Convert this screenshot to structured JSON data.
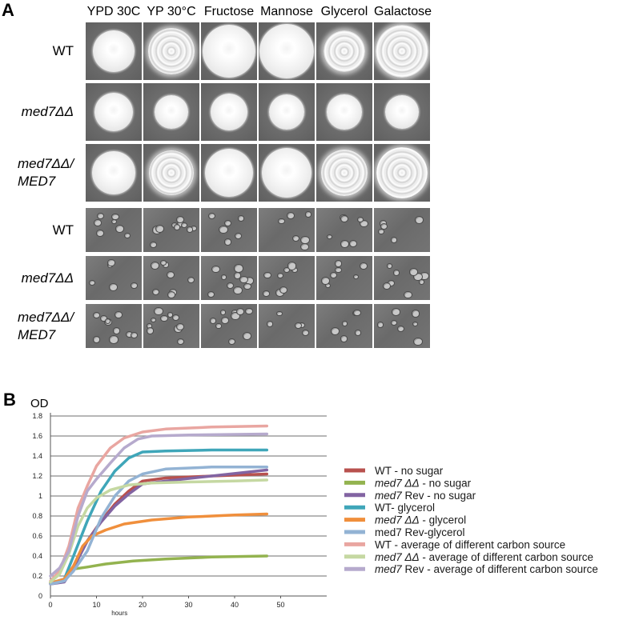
{
  "panel_a": {
    "label": "A",
    "columns": [
      "YPD 30C",
      "YP 30°C",
      "Fructose",
      "Mannose",
      "Glycerol",
      "Galactose"
    ],
    "colony_rows": [
      {
        "label_lines": [
          "WT"
        ],
        "italic": false
      },
      {
        "label_lines": [
          "med7ΔΔ"
        ],
        "italic": true
      },
      {
        "label_lines": [
          "med7ΔΔ/",
          "MED7"
        ],
        "italic": true
      }
    ],
    "micro_rows": [
      {
        "label_lines": [
          "WT"
        ],
        "italic": false
      },
      {
        "label_lines": [
          "med7ΔΔ"
        ],
        "italic": true
      },
      {
        "label_lines": [
          "med7ΔΔ/",
          "MED7"
        ],
        "italic": true
      }
    ]
  },
  "panel_b": {
    "label": "B",
    "ylabel": "OD",
    "xlabel": "hours"
  },
  "chart_data": {
    "type": "line",
    "title": "",
    "xlabel": "hours",
    "ylabel": "OD",
    "xlim": [
      0,
      60
    ],
    "ylim": [
      0,
      1.8
    ],
    "xticks": [
      0,
      10,
      20,
      30,
      40,
      50
    ],
    "yticks": [
      "0",
      "0.2",
      "0.4",
      "0.6",
      "0.8",
      "1",
      "1.2",
      "1.4",
      "1.6",
      "1.8"
    ],
    "grid": "horizontal",
    "legend_position": "right",
    "series": [
      {
        "name": "WT - no sugar",
        "name_parts": [
          {
            "t": "WT - no sugar",
            "i": false
          }
        ],
        "color": "#b8514e",
        "points": [
          [
            0,
            0.12
          ],
          [
            3,
            0.15
          ],
          [
            5,
            0.3
          ],
          [
            8,
            0.55
          ],
          [
            11,
            0.75
          ],
          [
            14,
            0.92
          ],
          [
            17,
            1.05
          ],
          [
            20,
            1.15
          ],
          [
            25,
            1.18
          ],
          [
            35,
            1.2
          ],
          [
            47,
            1.22
          ]
        ]
      },
      {
        "name": "med7 ΔΔ - no sugar",
        "name_parts": [
          {
            "t": "med7 ΔΔ",
            "i": true
          },
          {
            "t": " - no sugar",
            "i": false
          }
        ],
        "color": "#93b34f",
        "points": [
          [
            0,
            0.13
          ],
          [
            3,
            0.16
          ],
          [
            5,
            0.27
          ],
          [
            8,
            0.29
          ],
          [
            12,
            0.32
          ],
          [
            18,
            0.35
          ],
          [
            25,
            0.37
          ],
          [
            35,
            0.39
          ],
          [
            47,
            0.4
          ]
        ]
      },
      {
        "name": "med7 Rev - no sugar",
        "name_parts": [
          {
            "t": "med7",
            "i": true
          },
          {
            "t": " Rev - no sugar",
            "i": false
          }
        ],
        "color": "#8264a2",
        "points": [
          [
            0,
            0.12
          ],
          [
            3,
            0.14
          ],
          [
            5,
            0.28
          ],
          [
            8,
            0.55
          ],
          [
            11,
            0.74
          ],
          [
            14,
            0.9
          ],
          [
            17,
            1.02
          ],
          [
            20,
            1.12
          ],
          [
            25,
            1.15
          ],
          [
            35,
            1.2
          ],
          [
            47,
            1.26
          ]
        ]
      },
      {
        "name": "WT- glycerol",
        "name_parts": [
          {
            "t": "WT- glycerol",
            "i": false
          }
        ],
        "color": "#3fa6b9",
        "points": [
          [
            0,
            0.13
          ],
          [
            3,
            0.17
          ],
          [
            5,
            0.4
          ],
          [
            8,
            0.75
          ],
          [
            11,
            1.05
          ],
          [
            14,
            1.25
          ],
          [
            17,
            1.38
          ],
          [
            20,
            1.44
          ],
          [
            25,
            1.45
          ],
          [
            35,
            1.46
          ],
          [
            47,
            1.46
          ]
        ]
      },
      {
        "name": "med7 ΔΔ - glycerol",
        "name_parts": [
          {
            "t": "med7 ΔΔ",
            "i": true
          },
          {
            "t": " - glycerol",
            "i": false
          }
        ],
        "color": "#f08f3c",
        "points": [
          [
            0,
            0.13
          ],
          [
            3,
            0.17
          ],
          [
            5,
            0.3
          ],
          [
            7,
            0.5
          ],
          [
            9,
            0.6
          ],
          [
            12,
            0.66
          ],
          [
            16,
            0.72
          ],
          [
            22,
            0.76
          ],
          [
            30,
            0.79
          ],
          [
            40,
            0.81
          ],
          [
            47,
            0.82
          ]
        ]
      },
      {
        "name": "med7 Rev-glycerol",
        "name_parts": [
          {
            "t": "med7 Rev-glycerol",
            "i": false
          }
        ],
        "color": "#93b3d4",
        "points": [
          [
            0,
            0.12
          ],
          [
            3,
            0.15
          ],
          [
            5,
            0.25
          ],
          [
            8,
            0.45
          ],
          [
            11,
            0.78
          ],
          [
            14,
            1.0
          ],
          [
            17,
            1.15
          ],
          [
            20,
            1.22
          ],
          [
            25,
            1.27
          ],
          [
            35,
            1.29
          ],
          [
            47,
            1.29
          ]
        ]
      },
      {
        "name": "WT - average of different carbon source",
        "name_parts": [
          {
            "t": "WT - average of different carbon source",
            "i": false
          }
        ],
        "color": "#e9a6a1",
        "points": [
          [
            0,
            0.15
          ],
          [
            2,
            0.25
          ],
          [
            4,
            0.5
          ],
          [
            6,
            0.88
          ],
          [
            8,
            1.1
          ],
          [
            10,
            1.3
          ],
          [
            13,
            1.48
          ],
          [
            16,
            1.58
          ],
          [
            20,
            1.64
          ],
          [
            25,
            1.67
          ],
          [
            35,
            1.69
          ],
          [
            47,
            1.7
          ]
        ]
      },
      {
        "name": "med7 ΔΔ - average of different carbon source",
        "name_parts": [
          {
            "t": "med7 ΔΔ",
            "i": true
          },
          {
            "t": " - average of different carbon source",
            "i": false
          }
        ],
        "color": "#c5d8a2",
        "points": [
          [
            0,
            0.14
          ],
          [
            2,
            0.22
          ],
          [
            4,
            0.42
          ],
          [
            6,
            0.7
          ],
          [
            8,
            0.88
          ],
          [
            10,
            0.98
          ],
          [
            13,
            1.06
          ],
          [
            17,
            1.11
          ],
          [
            22,
            1.13
          ],
          [
            30,
            1.14
          ],
          [
            40,
            1.15
          ],
          [
            47,
            1.16
          ]
        ]
      },
      {
        "name": "med7 Rev - average of different carbon source",
        "name_parts": [
          {
            "t": "med7",
            "i": true
          },
          {
            "t": " Rev - average of different carbon source",
            "i": false
          }
        ],
        "color": "#b6aacd",
        "points": [
          [
            0,
            0.2
          ],
          [
            2,
            0.28
          ],
          [
            4,
            0.45
          ],
          [
            6,
            0.8
          ],
          [
            8,
            1.05
          ],
          [
            10,
            1.17
          ],
          [
            13,
            1.33
          ],
          [
            16,
            1.48
          ],
          [
            19,
            1.57
          ],
          [
            22,
            1.6
          ],
          [
            30,
            1.61
          ],
          [
            47,
            1.62
          ]
        ]
      }
    ]
  }
}
